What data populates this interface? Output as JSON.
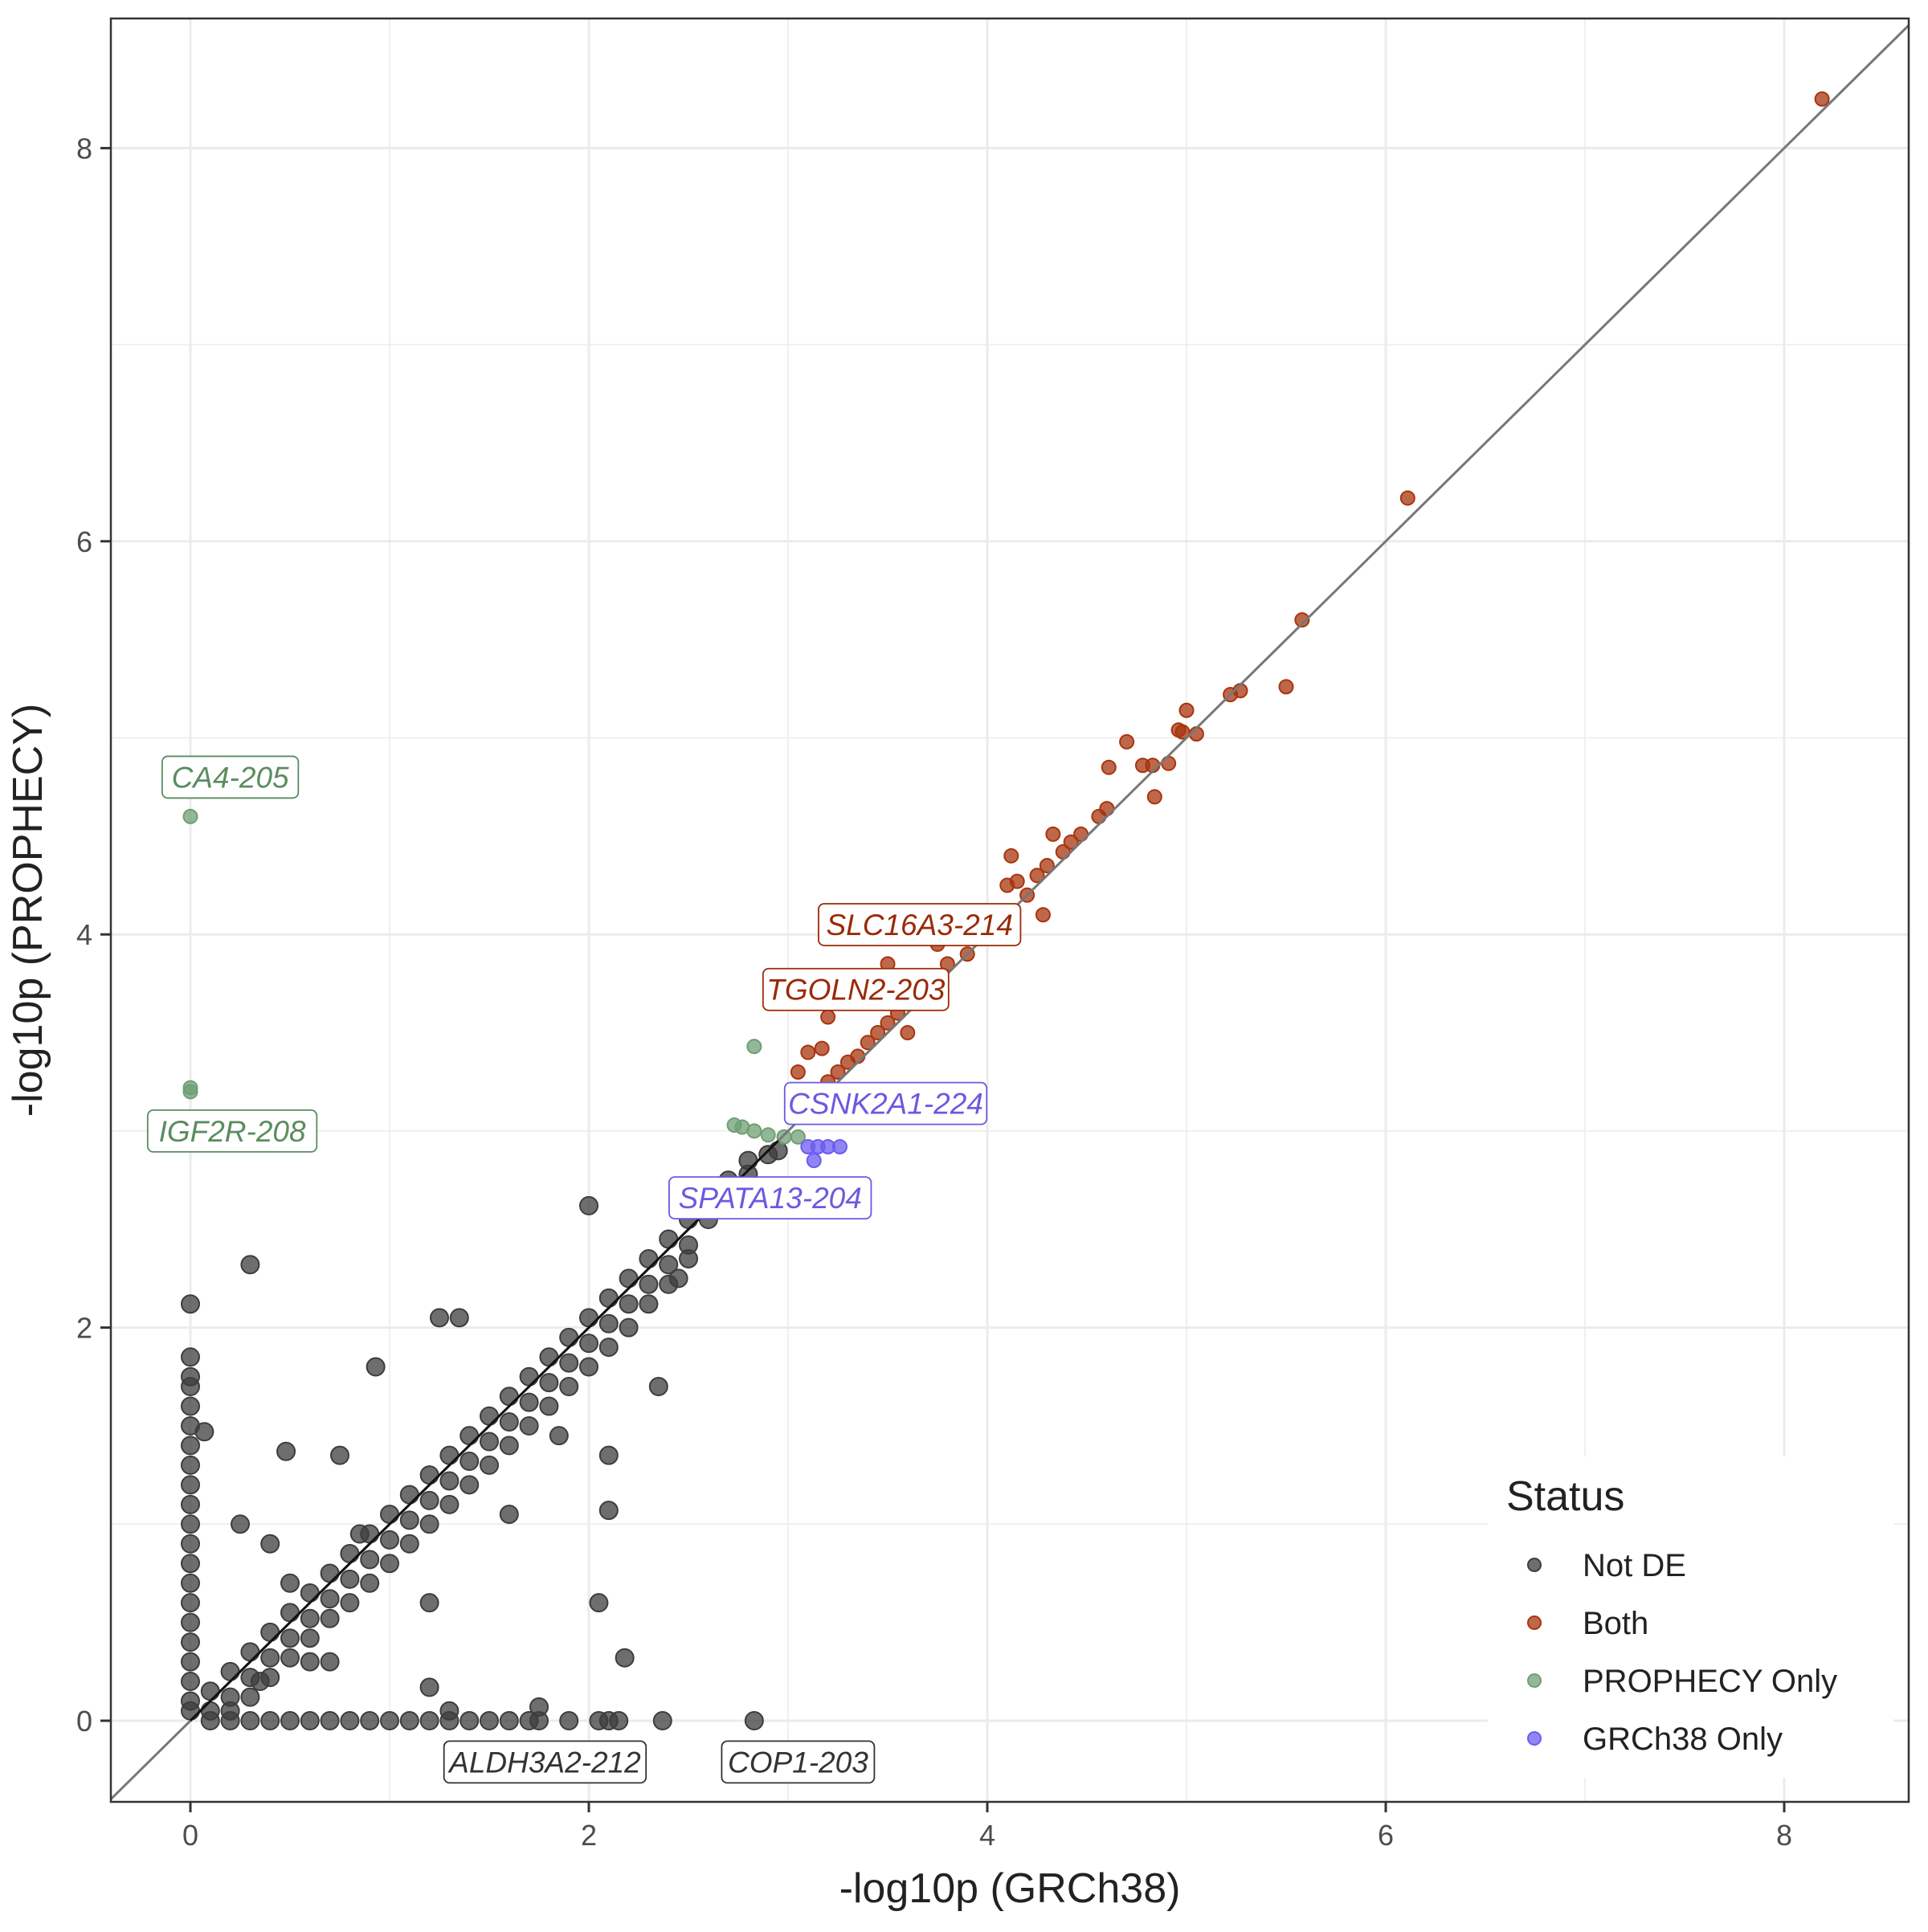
{
  "chart_data": {
    "type": "scatter",
    "xlabel": "-log10p (GRCh38)",
    "ylabel": "-log10p (PROPHECY)",
    "xlim": [
      -0.4,
      8.62
    ],
    "ylim": [
      -0.41,
      8.41
    ],
    "xticks": [
      "0",
      "2",
      "4",
      "6",
      "8"
    ],
    "yticks": [
      "0",
      "2",
      "4",
      "6",
      "8"
    ],
    "grid": true,
    "reference_line": "y = x",
    "legend": {
      "title": "Status",
      "placement": "bottom-right",
      "entries": [
        "Not DE",
        "Both",
        "PROPHECY Only",
        "GRCh38 Only"
      ]
    },
    "colors": {
      "Not DE": "#3d3d3d",
      "Both": "#a8350f",
      "PROPHECY Only": "#6f9f74",
      "GRCh38 Only": "#6c5cf0"
    },
    "series": [
      {
        "name": "Not DE",
        "points": [
          [
            0,
            0.05
          ],
          [
            0,
            0.1
          ],
          [
            0,
            0.2
          ],
          [
            0,
            0.3
          ],
          [
            0,
            0.4
          ],
          [
            0,
            0.5
          ],
          [
            0,
            0.6
          ],
          [
            0,
            0.7
          ],
          [
            0,
            0.8
          ],
          [
            0,
            0.9
          ],
          [
            0,
            1.0
          ],
          [
            0,
            1.1
          ],
          [
            0,
            1.2
          ],
          [
            0,
            1.3
          ],
          [
            0,
            1.4
          ],
          [
            0,
            1.5
          ],
          [
            0,
            1.6
          ],
          [
            0,
            1.7
          ],
          [
            0,
            1.75
          ],
          [
            0,
            1.85
          ],
          [
            0,
            2.12
          ],
          [
            0.07,
            1.47
          ],
          [
            0.3,
            2.32
          ],
          [
            0.1,
            0
          ],
          [
            0.2,
            0
          ],
          [
            0.3,
            0
          ],
          [
            0.4,
            0
          ],
          [
            0.5,
            0
          ],
          [
            0.6,
            0
          ],
          [
            0.7,
            0
          ],
          [
            0.8,
            0
          ],
          [
            0.9,
            0
          ],
          [
            1.0,
            0
          ],
          [
            1.1,
            0
          ],
          [
            1.2,
            0
          ],
          [
            1.3,
            0
          ],
          [
            1.4,
            0
          ],
          [
            1.5,
            0
          ],
          [
            1.6,
            0
          ],
          [
            1.7,
            0
          ],
          [
            1.75,
            0
          ],
          [
            1.9,
            0
          ],
          [
            2.05,
            0
          ],
          [
            2.1,
            0
          ],
          [
            2.15,
            0
          ],
          [
            2.37,
            0
          ],
          [
            2.83,
            0
          ],
          [
            1.75,
            0.07
          ],
          [
            1.3,
            0.05
          ],
          [
            1.2,
            0.17
          ],
          [
            0.6,
            0.3
          ],
          [
            0.35,
            0.2
          ],
          [
            0.1,
            0.15
          ],
          [
            0.1,
            0.05
          ],
          [
            0.2,
            0.25
          ],
          [
            0.2,
            0.12
          ],
          [
            0.2,
            0.05
          ],
          [
            0.3,
            0.35
          ],
          [
            0.3,
            0.22
          ],
          [
            0.3,
            0.12
          ],
          [
            0.4,
            0.45
          ],
          [
            0.4,
            0.32
          ],
          [
            0.4,
            0.22
          ],
          [
            0.5,
            0.55
          ],
          [
            0.5,
            0.42
          ],
          [
            0.5,
            0.32
          ],
          [
            0.6,
            0.65
          ],
          [
            0.6,
            0.52
          ],
          [
            0.6,
            0.42
          ],
          [
            0.7,
            0.75
          ],
          [
            0.7,
            0.62
          ],
          [
            0.7,
            0.52
          ],
          [
            0.8,
            0.85
          ],
          [
            0.8,
            0.72
          ],
          [
            0.8,
            0.6
          ],
          [
            0.9,
            0.95
          ],
          [
            0.9,
            0.82
          ],
          [
            0.9,
            0.7
          ],
          [
            1.0,
            1.05
          ],
          [
            1.0,
            0.92
          ],
          [
            1.0,
            0.8
          ],
          [
            1.1,
            1.15
          ],
          [
            1.1,
            1.02
          ],
          [
            1.1,
            0.9
          ],
          [
            1.2,
            1.25
          ],
          [
            1.2,
            1.12
          ],
          [
            1.2,
            1.0
          ],
          [
            1.3,
            1.35
          ],
          [
            1.3,
            1.22
          ],
          [
            1.3,
            1.1
          ],
          [
            1.4,
            1.45
          ],
          [
            1.4,
            1.32
          ],
          [
            1.4,
            1.2
          ],
          [
            1.5,
            1.55
          ],
          [
            1.5,
            1.42
          ],
          [
            1.5,
            1.3
          ],
          [
            1.6,
            1.65
          ],
          [
            1.6,
            1.52
          ],
          [
            1.6,
            1.4
          ],
          [
            1.7,
            1.75
          ],
          [
            1.7,
            1.62
          ],
          [
            1.7,
            1.5
          ],
          [
            1.8,
            1.85
          ],
          [
            1.8,
            1.72
          ],
          [
            1.8,
            1.6
          ],
          [
            1.9,
            1.95
          ],
          [
            1.9,
            1.82
          ],
          [
            1.9,
            1.7
          ],
          [
            2.0,
            2.05
          ],
          [
            2.0,
            1.92
          ],
          [
            2.0,
            1.8
          ],
          [
            2.1,
            2.15
          ],
          [
            2.1,
            2.02
          ],
          [
            2.1,
            1.9
          ],
          [
            2.2,
            2.25
          ],
          [
            2.2,
            2.12
          ],
          [
            2.2,
            2.0
          ],
          [
            2.3,
            2.35
          ],
          [
            2.3,
            2.22
          ],
          [
            2.3,
            2.12
          ],
          [
            2.4,
            2.45
          ],
          [
            2.4,
            2.32
          ],
          [
            2.4,
            2.22
          ],
          [
            2.5,
            2.55
          ],
          [
            2.5,
            2.42
          ],
          [
            2.5,
            2.35
          ],
          [
            2.6,
            2.65
          ],
          [
            2.6,
            2.55
          ],
          [
            2.7,
            2.75
          ],
          [
            2.7,
            2.68
          ],
          [
            2.8,
            2.85
          ],
          [
            2.8,
            2.78
          ],
          [
            2.9,
            2.88
          ],
          [
            2.95,
            2.9
          ],
          [
            1.25,
            2.05
          ],
          [
            1.35,
            2.05
          ],
          [
            2.0,
            2.62
          ],
          [
            0.93,
            1.8
          ],
          [
            2.35,
            1.7
          ],
          [
            2.1,
            1.35
          ],
          [
            2.1,
            1.07
          ],
          [
            2.05,
            0.6
          ],
          [
            2.18,
            0.32
          ],
          [
            2.45,
            2.25
          ],
          [
            0.48,
            1.37
          ],
          [
            0.75,
            1.35
          ],
          [
            0.85,
            0.95
          ],
          [
            1.2,
            0.6
          ],
          [
            0.25,
            1.0
          ],
          [
            0.5,
            0.7
          ],
          [
            1.6,
            1.05
          ],
          [
            1.85,
            1.45
          ],
          [
            0.4,
            0.9
          ],
          [
            0.7,
            0.3
          ]
        ]
      },
      {
        "name": "Both",
        "points": [
          [
            8.19,
            8.25
          ],
          [
            6.11,
            6.22
          ],
          [
            5.58,
            5.6
          ],
          [
            5.5,
            5.26
          ],
          [
            5.27,
            5.24
          ],
          [
            5.22,
            5.22
          ],
          [
            5.05,
            5.02
          ],
          [
            5.0,
            5.14
          ],
          [
            4.96,
            5.04
          ],
          [
            4.98,
            5.03
          ],
          [
            4.91,
            4.87
          ],
          [
            4.83,
            4.86
          ],
          [
            4.78,
            4.86
          ],
          [
            4.7,
            4.98
          ],
          [
            4.84,
            4.7
          ],
          [
            4.61,
            4.85
          ],
          [
            4.6,
            4.64
          ],
          [
            4.56,
            4.6
          ],
          [
            4.47,
            4.51
          ],
          [
            4.42,
            4.47
          ],
          [
            4.38,
            4.42
          ],
          [
            4.33,
            4.51
          ],
          [
            4.3,
            4.35
          ],
          [
            4.25,
            4.3
          ],
          [
            4.2,
            4.2
          ],
          [
            4.12,
            4.4
          ],
          [
            4.15,
            4.27
          ],
          [
            4.28,
            4.1
          ],
          [
            4.0,
            4.1
          ],
          [
            3.95,
            3.98
          ],
          [
            3.9,
            3.9
          ],
          [
            3.8,
            3.85
          ],
          [
            3.75,
            3.7
          ],
          [
            3.7,
            3.78
          ],
          [
            3.6,
            3.7
          ],
          [
            3.55,
            3.6
          ],
          [
            3.5,
            3.55
          ],
          [
            3.45,
            3.5
          ],
          [
            3.4,
            3.45
          ],
          [
            3.35,
            3.38
          ],
          [
            3.3,
            3.35
          ],
          [
            3.25,
            3.3
          ],
          [
            3.2,
            3.25
          ],
          [
            3.15,
            3.2
          ],
          [
            3.1,
            3.15
          ],
          [
            3.05,
            3.3
          ],
          [
            3.17,
            3.42
          ],
          [
            3.1,
            3.4
          ],
          [
            3.2,
            3.58
          ],
          [
            3.5,
            3.85
          ],
          [
            3.75,
            3.95
          ],
          [
            4.1,
            4.25
          ],
          [
            3.3,
            3.2
          ],
          [
            3.6,
            3.5
          ]
        ]
      },
      {
        "name": "PROPHECY Only",
        "points": [
          [
            0,
            4.6
          ],
          [
            0,
            3.2
          ],
          [
            0,
            3.22
          ],
          [
            2.83,
            3.43
          ],
          [
            2.73,
            3.03
          ],
          [
            2.77,
            3.02
          ],
          [
            2.83,
            3.0
          ],
          [
            2.9,
            2.98
          ],
          [
            2.98,
            2.97
          ],
          [
            3.05,
            2.97
          ]
        ]
      },
      {
        "name": "GRCh38 Only",
        "points": [
          [
            3.1,
            2.92
          ],
          [
            3.15,
            2.92
          ],
          [
            3.2,
            2.92
          ],
          [
            3.26,
            2.92
          ],
          [
            3.13,
            2.85
          ]
        ]
      }
    ],
    "annotations": [
      {
        "text": "CA4-205",
        "series": "PROPHECY Only",
        "x": 0.2,
        "y": 4.8
      },
      {
        "text": "IGF2R-208",
        "series": "PROPHECY Only",
        "x": 0.21,
        "y": 3.0
      },
      {
        "text": "SLC16A3-214",
        "series": "Both",
        "x": 3.66,
        "y": 4.05
      },
      {
        "text": "TGOLN2-203",
        "series": "Both",
        "x": 3.34,
        "y": 3.72
      },
      {
        "text": "CSNK2A1-224",
        "series": "GRCh38 Only",
        "x": 3.49,
        "y": 3.14
      },
      {
        "text": "SPATA13-204",
        "series": "GRCh38 Only",
        "x": 2.91,
        "y": 2.66
      },
      {
        "text": "ALDH3A2-212",
        "series": "Not DE",
        "x": 1.78,
        "y": -0.21
      },
      {
        "text": "COP1-203",
        "series": "Not DE",
        "x": 3.05,
        "y": -0.21
      }
    ],
    "label_text_colors": {
      "Not DE": "#333333",
      "Both": "#9a2a06",
      "PROPHECY Only": "#5b8c5f",
      "GRCh38 Only": "#6a5ae0"
    }
  }
}
